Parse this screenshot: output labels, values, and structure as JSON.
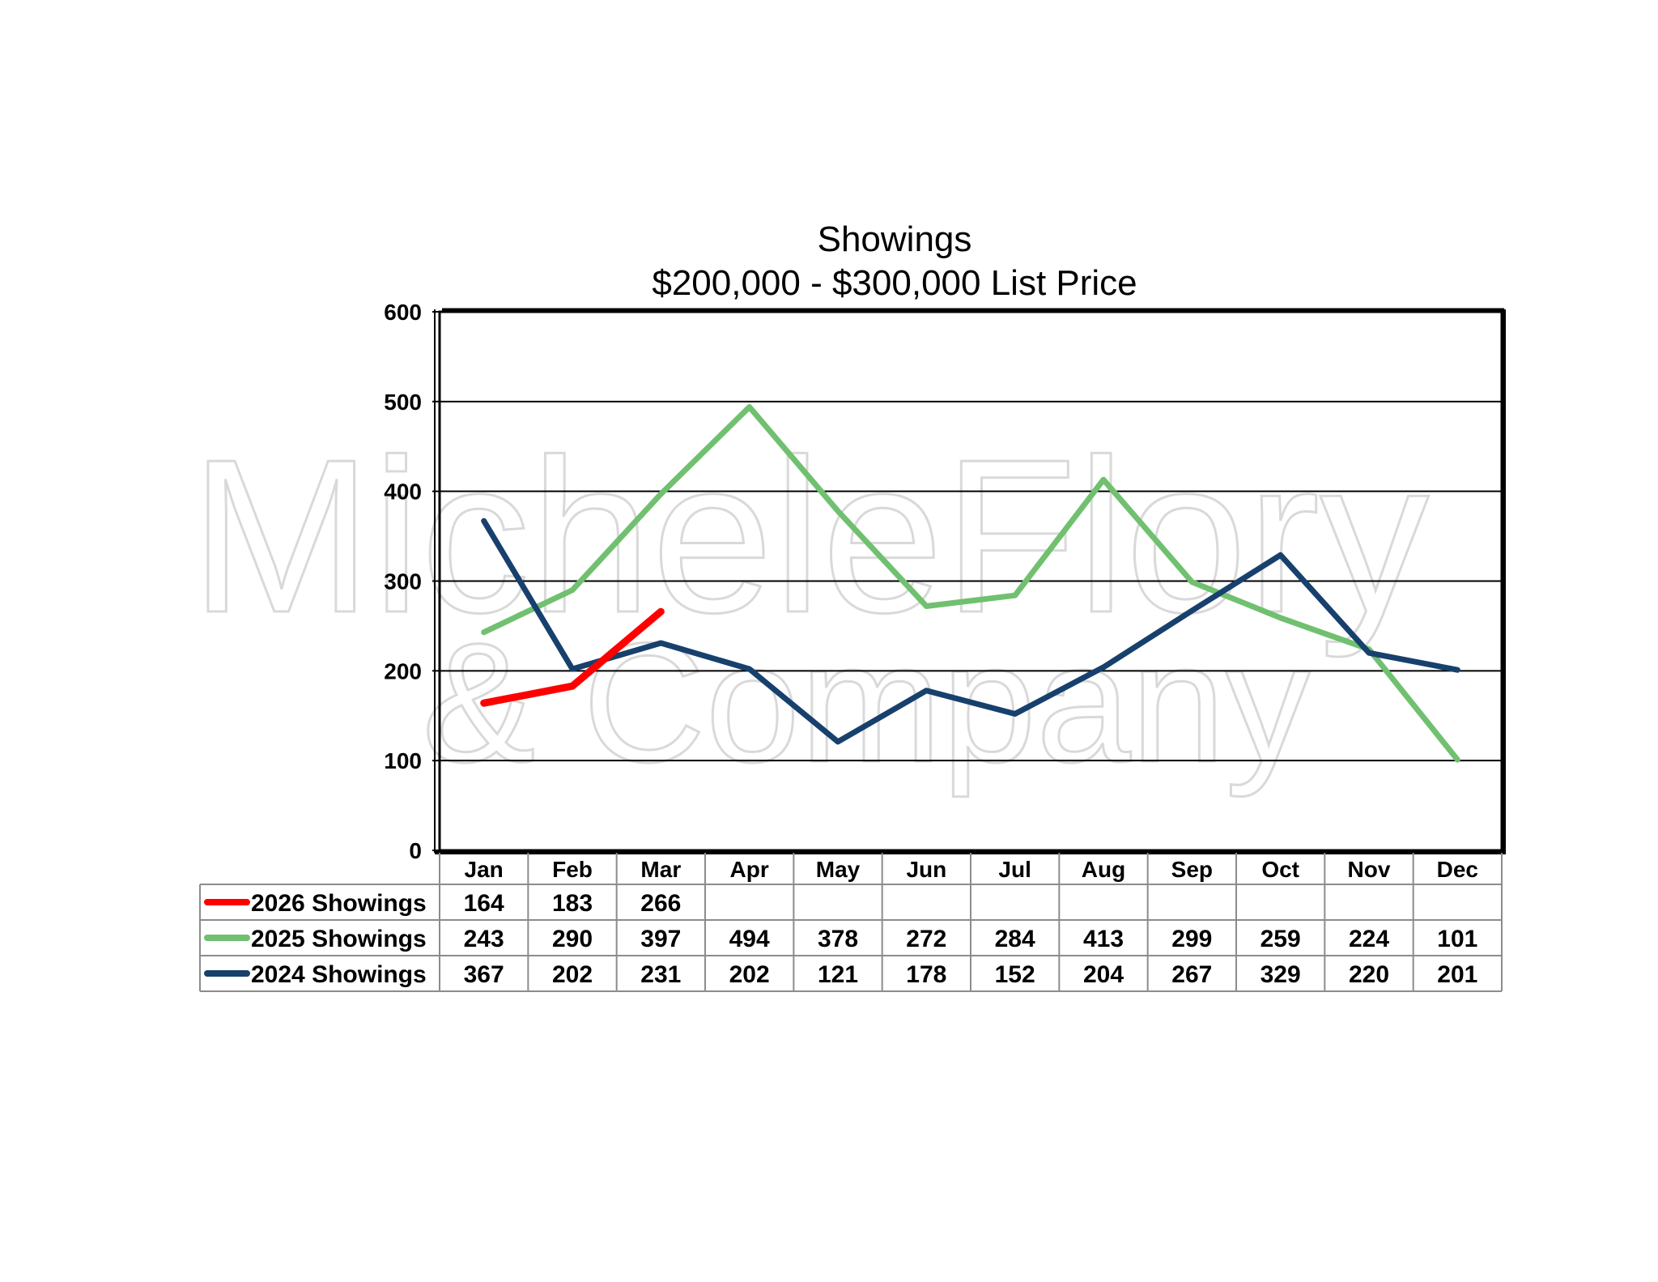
{
  "chart_data": {
    "type": "line",
    "title": "Showings",
    "subtitle": "$200,000 - $300,000 List Price",
    "categories": [
      "Jan",
      "Feb",
      "Mar",
      "Apr",
      "May",
      "Jun",
      "Jul",
      "Aug",
      "Sep",
      "Oct",
      "Nov",
      "Dec"
    ],
    "ylim": [
      0,
      600
    ],
    "yticks": [
      0,
      100,
      200,
      300,
      400,
      500,
      600
    ],
    "grid": true,
    "legend_placement": "data-table-left",
    "series": [
      {
        "name": "2026 Showings",
        "color": "#ff0000",
        "values": [
          164,
          183,
          266,
          null,
          null,
          null,
          null,
          null,
          null,
          null,
          null,
          null
        ]
      },
      {
        "name": "2025 Showings",
        "color": "#70c070",
        "values": [
          243,
          290,
          397,
          494,
          378,
          272,
          284,
          413,
          299,
          259,
          224,
          101
        ]
      },
      {
        "name": "2024 Showings",
        "color": "#17406d",
        "values": [
          367,
          202,
          231,
          202,
          121,
          178,
          152,
          204,
          267,
          329,
          220,
          201
        ]
      }
    ],
    "watermark": {
      "line1": "MicheleFlory",
      "line2": "& Company"
    }
  }
}
